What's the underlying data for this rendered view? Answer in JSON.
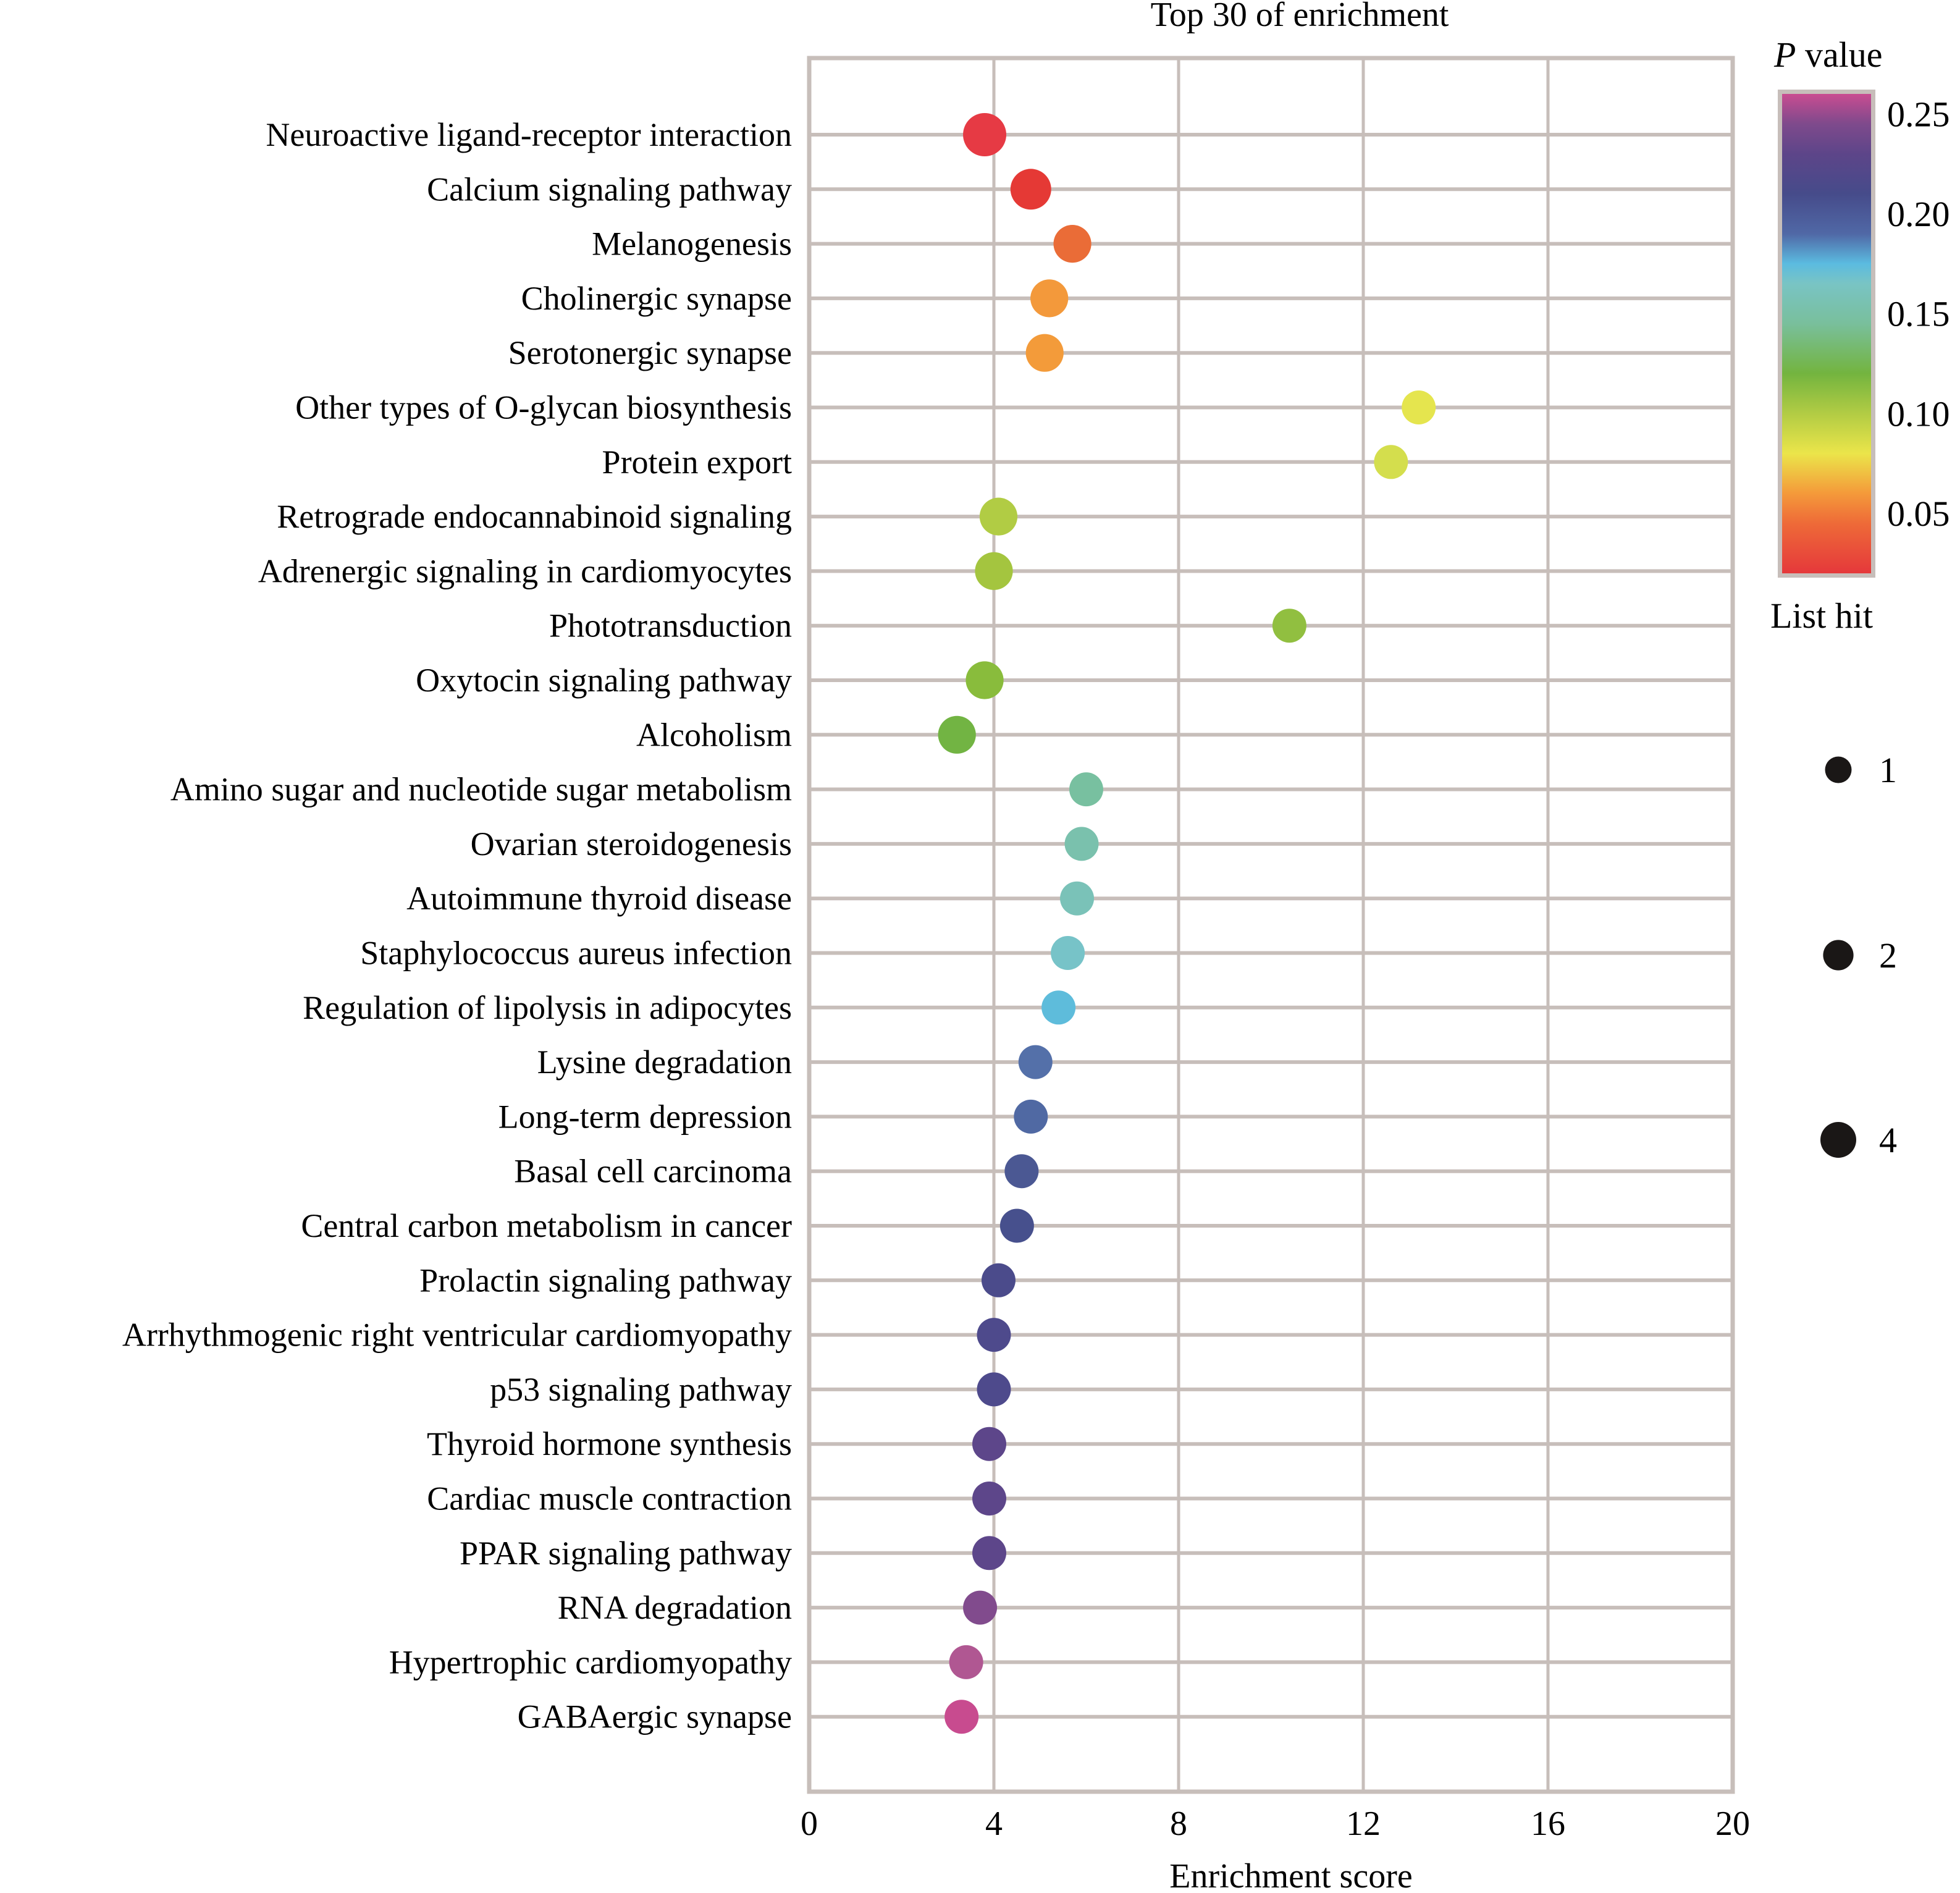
{
  "chart_data": {
    "type": "scatter",
    "subtype": "bubble",
    "title": "Top 30 of enrichment",
    "xlabel": "Enrichment score",
    "ylabel": "",
    "xlim": [
      0,
      20
    ],
    "xticks": [
      "0",
      "4",
      "8",
      "12",
      "16",
      "20"
    ],
    "xtick_values": [
      0,
      4,
      8,
      12,
      16,
      20
    ],
    "grid": true,
    "color_legend": {
      "title_italic": "P",
      "title_rest": " value",
      "range": [
        0.02,
        0.26
      ],
      "ticks": [
        "0.25",
        "0.20",
        "0.15",
        "0.10",
        "0.05"
      ],
      "tick_values": [
        0.25,
        0.2,
        0.15,
        0.1,
        0.05
      ],
      "placement": "top-right",
      "stops": [
        {
          "p": 0.02,
          "color": "#e5383b"
        },
        {
          "p": 0.045,
          "color": "#ee6a38"
        },
        {
          "p": 0.06,
          "color": "#f49a3a"
        },
        {
          "p": 0.08,
          "color": "#ebe54a"
        },
        {
          "p": 0.1,
          "color": "#b2cc44"
        },
        {
          "p": 0.12,
          "color": "#73b43f"
        },
        {
          "p": 0.145,
          "color": "#79bf9c"
        },
        {
          "p": 0.165,
          "color": "#79c4c4"
        },
        {
          "p": 0.175,
          "color": "#5bbbe0"
        },
        {
          "p": 0.19,
          "color": "#5068a6"
        },
        {
          "p": 0.21,
          "color": "#464b8a"
        },
        {
          "p": 0.23,
          "color": "#5d4589"
        },
        {
          "p": 0.245,
          "color": "#7f4a8c"
        },
        {
          "p": 0.26,
          "color": "#c94c91"
        }
      ]
    },
    "size_legend": {
      "title": "List hit",
      "values": [
        1,
        2,
        4
      ],
      "labels": [
        "1",
        "2",
        "4"
      ],
      "placement": "right"
    },
    "categories": [
      "Neuroactive ligand-receptor interaction",
      "Calcium signaling pathway",
      "Melanogenesis",
      "Cholinergic synapse",
      "Serotonergic synapse",
      "Other types of O-glycan biosynthesis",
      "Protein export",
      "Retrograde endocannabinoid signaling",
      "Adrenergic signaling in cardiomyocytes",
      "Phototransduction",
      "Oxytocin signaling pathway",
      "Alcoholism",
      "Amino sugar and nucleotide sugar metabolism",
      "Ovarian steroidogenesis",
      "Autoimmune thyroid disease",
      "Staphylococcus aureus infection",
      "Regulation of lipolysis in adipocytes",
      "Lysine degradation",
      "Long-term depression",
      "Basal cell carcinoma",
      "Central carbon metabolism in cancer",
      "Prolactin signaling pathway",
      "Arrhythmogenic right ventricular cardiomyopathy",
      "p53 signaling pathway",
      "Thyroid hormone synthesis",
      "Cardiac muscle contraction",
      "PPAR signaling pathway",
      "RNA degradation",
      "Hypertrophic cardiomyopathy",
      "GABAergic synapse"
    ],
    "series": [
      {
        "name": "pathways",
        "x": [
          3.8,
          4.8,
          5.7,
          5.2,
          5.1,
          13.2,
          12.6,
          4.1,
          4.0,
          10.4,
          3.8,
          3.2,
          6.0,
          5.9,
          5.8,
          5.6,
          5.4,
          4.9,
          4.8,
          4.6,
          4.5,
          4.1,
          4.0,
          4.0,
          3.9,
          3.9,
          3.9,
          3.7,
          3.4,
          3.3
        ],
        "p_value": [
          0.02,
          0.025,
          0.045,
          0.06,
          0.06,
          0.08,
          0.085,
          0.1,
          0.105,
          0.11,
          0.115,
          0.125,
          0.145,
          0.15,
          0.16,
          0.165,
          0.175,
          0.19,
          0.19,
          0.205,
          0.21,
          0.215,
          0.22,
          0.22,
          0.23,
          0.23,
          0.23,
          0.24,
          0.25,
          0.26
        ],
        "list_hit": [
          4,
          3,
          2,
          2,
          2,
          1,
          1,
          2,
          2,
          1,
          2,
          2,
          1,
          1,
          1,
          1,
          1,
          1,
          1,
          1,
          1,
          1,
          1,
          1,
          1,
          1,
          1,
          1,
          1,
          1
        ],
        "colors": [
          "#e63a44",
          "#e53935",
          "#ea6c37",
          "#f3993b",
          "#f39b3a",
          "#e5e54e",
          "#d4de4d",
          "#b1cc44",
          "#a4c53f",
          "#91bf40",
          "#89bc3c",
          "#72b443",
          "#78c0a0",
          "#7ac1ad",
          "#7ac2b8",
          "#77c3c8",
          "#5ebcdb",
          "#5470a9",
          "#5069a3",
          "#4b5893",
          "#47508d",
          "#4b4b8b",
          "#4e4a8c",
          "#4e4a8c",
          "#5d468a",
          "#5d468a",
          "#5d468a",
          "#814b8d",
          "#b05792",
          "#c84b8f"
        ]
      }
    ]
  }
}
